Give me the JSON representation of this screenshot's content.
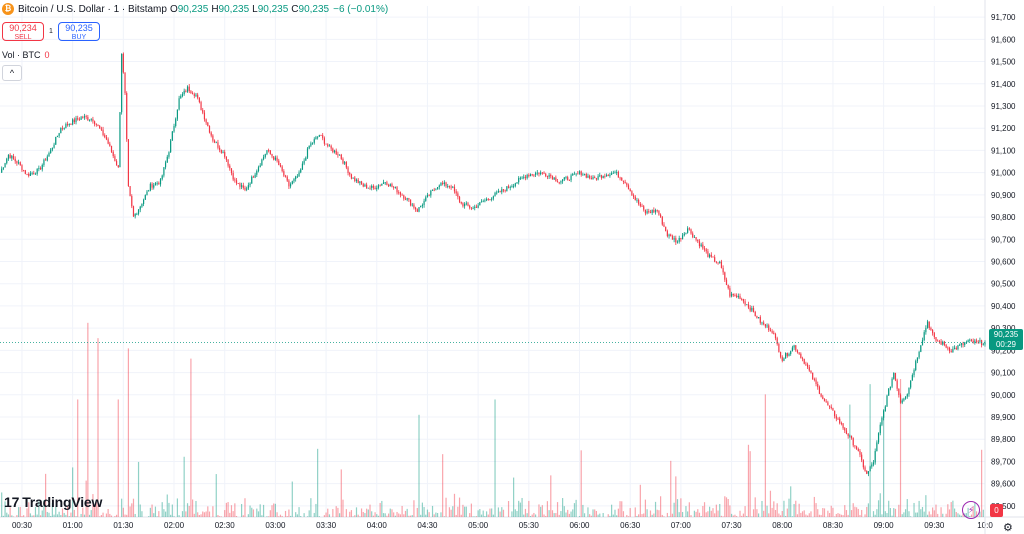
{
  "header": {
    "coin_glyph": "₿",
    "title": "Bitcoin / U.S. Dollar · 1 · Bitstamp",
    "o_label": "O",
    "o_value": "90,235",
    "h_label": "H",
    "h_value": "90,235",
    "l_label": "L",
    "l_value": "90,235",
    "c_label": "C",
    "c_value": "90,235",
    "change": "−6 (−0.01%)"
  },
  "trade": {
    "sell_price": "90,234",
    "sell_label": "SELL",
    "spread": "1",
    "buy_price": "90,235",
    "buy_label": "BUY"
  },
  "volume_legend": {
    "label": "Vol · BTC",
    "value": "0"
  },
  "collapse_glyph": "^",
  "logo": {
    "mark": "17",
    "text": "TradingView"
  },
  "last_price": {
    "price": "90,235",
    "countdown": "00:29"
  },
  "badge": "0",
  "colors": {
    "up": "#089981",
    "down": "#f23645",
    "grid": "#f0f3fa"
  },
  "chart_data": {
    "type": "candlestick",
    "ylim": [
      89450,
      91750
    ],
    "y_ticks": [
      91700,
      91600,
      91500,
      91400,
      91300,
      91200,
      91100,
      91000,
      90900,
      90800,
      90700,
      90600,
      90500,
      90400,
      90300,
      90200,
      90100,
      90000,
      89900,
      89800,
      89700,
      89600,
      89500
    ],
    "y_tick_labels": [
      "91,700",
      "91,600",
      "91,500",
      "91,400",
      "91,300",
      "91,200",
      "91,100",
      "91,000",
      "90,900",
      "90,800",
      "90,700",
      "90,600",
      "90,500",
      "90,400",
      "90,300",
      "90,200",
      "90,100",
      "90,000",
      "89,900",
      "89,800",
      "89,700",
      "89,600",
      "89,500"
    ],
    "x_tick_labels": [
      "00:30",
      "01:00",
      "01:30",
      "02:00",
      "02:30",
      "03:00",
      "03:30",
      "04:00",
      "04:30",
      "05:00",
      "05:30",
      "06:00",
      "06:30",
      "07:00",
      "07:30",
      "08:00",
      "08:30",
      "09:00",
      "09:30",
      "10:0"
    ],
    "x_start": "00:17",
    "x_end": "10:00",
    "last_price": 90235,
    "price_path": [
      [
        "00:17",
        91000
      ],
      [
        "00:22",
        91080
      ],
      [
        "00:28",
        91040
      ],
      [
        "00:33",
        90990
      ],
      [
        "00:40",
        91010
      ],
      [
        "00:47",
        91100
      ],
      [
        "00:53",
        91200
      ],
      [
        "01:00",
        91230
      ],
      [
        "01:06",
        91250
      ],
      [
        "01:12",
        91240
      ],
      [
        "01:20",
        91150
      ],
      [
        "01:27",
        91020
      ],
      [
        "01:29",
        91540
      ],
      [
        "01:31",
        91350
      ],
      [
        "01:33",
        90930
      ],
      [
        "01:36",
        90800
      ],
      [
        "01:40",
        90850
      ],
      [
        "01:46",
        90940
      ],
      [
        "01:52",
        90960
      ],
      [
        "01:57",
        91100
      ],
      [
        "02:03",
        91330
      ],
      [
        "02:08",
        91380
      ],
      [
        "02:13",
        91350
      ],
      [
        "02:18",
        91250
      ],
      [
        "02:23",
        91150
      ],
      [
        "02:30",
        91080
      ],
      [
        "02:36",
        90960
      ],
      [
        "02:42",
        90920
      ],
      [
        "02:48",
        91000
      ],
      [
        "02:55",
        91100
      ],
      [
        "03:01",
        91050
      ],
      [
        "03:08",
        90940
      ],
      [
        "03:14",
        90990
      ],
      [
        "03:20",
        91120
      ],
      [
        "03:26",
        91170
      ],
      [
        "03:32",
        91110
      ],
      [
        "03:38",
        91080
      ],
      [
        "03:45",
        90980
      ],
      [
        "03:52",
        90940
      ],
      [
        "03:58",
        90930
      ],
      [
        "04:05",
        90960
      ],
      [
        "04:12",
        90920
      ],
      [
        "04:18",
        90880
      ],
      [
        "04:24",
        90830
      ],
      [
        "04:31",
        90900
      ],
      [
        "04:37",
        90950
      ],
      [
        "04:44",
        90940
      ],
      [
        "04:50",
        90860
      ],
      [
        "04:57",
        90840
      ],
      [
        "05:03",
        90870
      ],
      [
        "05:10",
        90900
      ],
      [
        "05:17",
        90930
      ],
      [
        "05:23",
        90960
      ],
      [
        "05:29",
        90990
      ],
      [
        "05:36",
        91000
      ],
      [
        "05:42",
        90990
      ],
      [
        "05:48",
        90960
      ],
      [
        "05:55",
        90980
      ],
      [
        "06:01",
        91000
      ],
      [
        "06:08",
        90970
      ],
      [
        "06:14",
        90990
      ],
      [
        "06:21",
        91000
      ],
      [
        "06:27",
        90960
      ],
      [
        "06:33",
        90880
      ],
      [
        "06:39",
        90820
      ],
      [
        "06:46",
        90830
      ],
      [
        "06:52",
        90720
      ],
      [
        "06:58",
        90690
      ],
      [
        "07:04",
        90750
      ],
      [
        "07:10",
        90690
      ],
      [
        "07:17",
        90620
      ],
      [
        "07:23",
        90590
      ],
      [
        "07:29",
        90450
      ],
      [
        "07:35",
        90440
      ],
      [
        "07:41",
        90390
      ],
      [
        "07:48",
        90320
      ],
      [
        "07:54",
        90290
      ],
      [
        "08:00",
        90160
      ],
      [
        "08:07",
        90220
      ],
      [
        "08:13",
        90150
      ],
      [
        "08:19",
        90060
      ],
      [
        "08:25",
        89970
      ],
      [
        "08:32",
        89900
      ],
      [
        "08:38",
        89830
      ],
      [
        "08:44",
        89760
      ],
      [
        "08:50",
        89640
      ],
      [
        "08:54",
        89700
      ],
      [
        "08:58",
        89860
      ],
      [
        "09:02",
        89990
      ],
      [
        "09:06",
        90100
      ],
      [
        "09:10",
        89970
      ],
      [
        "09:14",
        90010
      ],
      [
        "09:18",
        90120
      ],
      [
        "09:22",
        90230
      ],
      [
        "09:26",
        90330
      ],
      [
        "09:30",
        90250
      ],
      [
        "09:35",
        90230
      ],
      [
        "09:40",
        90200
      ],
      [
        "09:45",
        90220
      ],
      [
        "09:50",
        90240
      ],
      [
        "09:55",
        90235
      ],
      [
        "10:00",
        90235
      ]
    ],
    "volume_peaks": [
      [
        "01:03",
        0.23
      ],
      [
        "01:09",
        0.38
      ],
      [
        "01:15",
        0.35
      ],
      [
        "01:27",
        0.23
      ],
      [
        "01:33",
        0.33
      ],
      [
        "02:10",
        0.31
      ],
      [
        "04:25",
        0.2
      ],
      [
        "05:10",
        0.23
      ],
      [
        "07:50",
        0.24
      ],
      [
        "08:05",
        0.06
      ],
      [
        "08:40",
        0.22
      ],
      [
        "08:52",
        0.26
      ],
      [
        "09:00",
        0.21
      ],
      [
        "09:10",
        0.27
      ]
    ]
  }
}
